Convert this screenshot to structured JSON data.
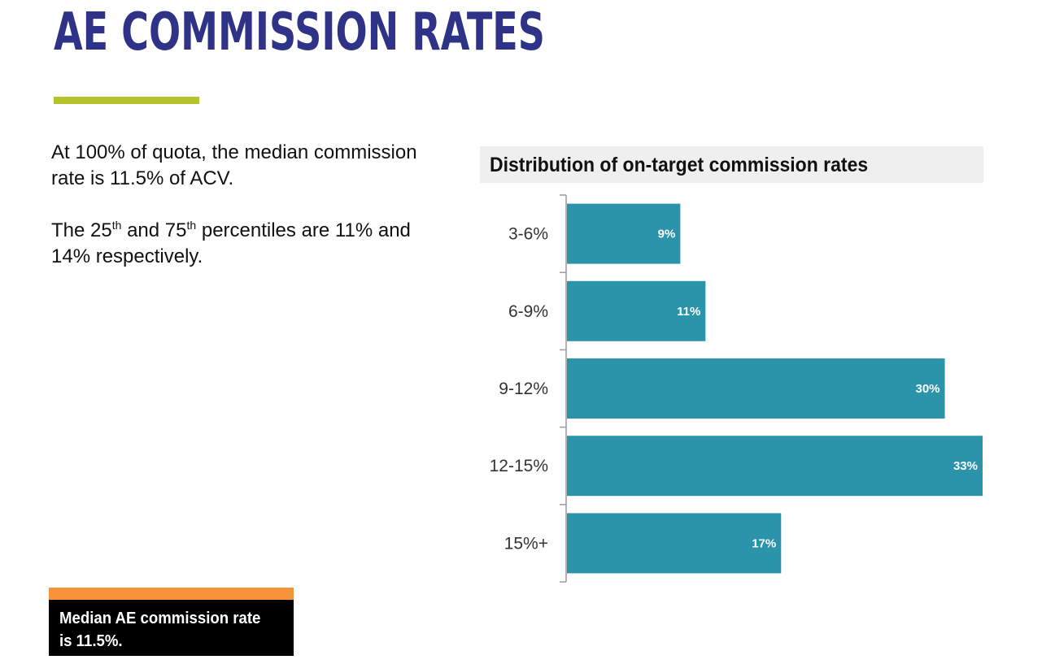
{
  "slide": {
    "title": "AE COMMISSION RATES",
    "intro_line": "At 100% of quota, the median commission rate is 11.5% of ACV.",
    "percentiles": {
      "prefix": "The 25",
      "ordinal_1": "th",
      "middle": " and 75",
      "ordinal_2": "th",
      "suffix": " percentiles are 11% and 14% respectively."
    },
    "callout": "Median AE commission rate is 11.5%."
  },
  "colors": {
    "title": "#2e3388",
    "underline": "#b5c42a",
    "callout_accent": "#f7923a",
    "bar": "#2b93aa"
  },
  "chart_data": {
    "type": "bar",
    "orientation": "horizontal",
    "title": "Distribution of on-target commission rates",
    "categories": [
      "3-6%",
      "6-9%",
      "9-12%",
      "12-15%",
      "15%+"
    ],
    "values": [
      9,
      11,
      30,
      33,
      17
    ],
    "data_labels": [
      "9%",
      "11%",
      "30%",
      "33%",
      "17%"
    ],
    "xlim": [
      0,
      33
    ],
    "grid": false,
    "legend": "none"
  }
}
